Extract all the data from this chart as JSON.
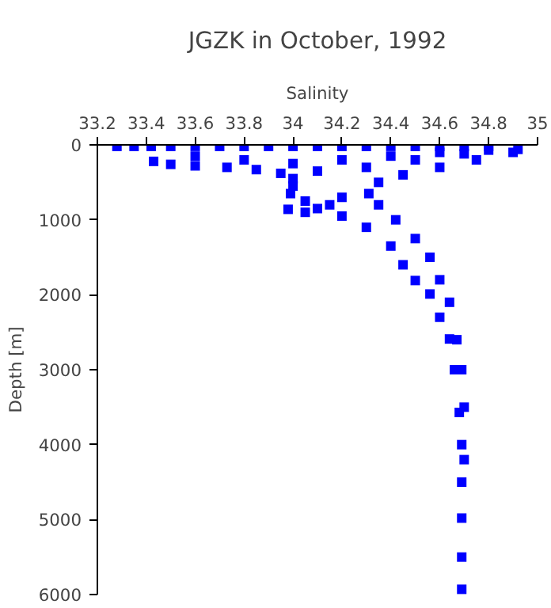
{
  "chart_data": {
    "type": "scatter",
    "title": "JGZK in October, 1992",
    "xlabel": "Salinity",
    "ylabel": "Depth [m]",
    "xlim": [
      33.2,
      35
    ],
    "xticks": [
      33.2,
      33.4,
      33.6,
      33.8,
      34,
      34.2,
      34.4,
      34.6,
      34.8,
      35
    ],
    "ylim": [
      6000,
      0
    ],
    "yticks": [
      0,
      1000,
      2000,
      3000,
      4000,
      5000,
      6000
    ],
    "grid": false,
    "marker": "square",
    "series": [
      {
        "color": "#0000ff",
        "x": [
          33.28,
          33.35,
          33.42,
          33.5,
          33.6,
          33.7,
          33.8,
          33.9,
          34.0,
          34.1,
          34.2,
          34.3,
          34.4,
          34.5,
          34.6,
          34.7,
          34.8,
          34.92,
          33.43,
          33.5,
          33.6,
          33.73,
          33.85,
          33.95,
          34.0,
          34.0,
          33.99,
          33.6,
          33.8,
          34.0,
          34.2,
          34.4,
          34.6,
          34.8,
          34.1,
          34.3,
          34.5,
          34.7,
          33.98,
          34.05,
          34.1,
          34.15,
          34.05,
          34.2,
          34.9,
          34.75,
          34.6,
          34.45,
          34.35,
          34.31,
          34.35,
          34.42,
          34.5,
          34.56,
          34.6,
          34.64,
          34.2,
          34.3,
          34.4,
          34.45,
          34.5,
          34.56,
          34.6,
          34.64,
          34.66,
          34.68,
          34.69,
          34.69,
          34.69,
          34.69,
          34.69,
          34.67,
          34.69,
          34.7,
          34.7
        ],
        "values": [
          20,
          20,
          20,
          20,
          20,
          20,
          20,
          20,
          20,
          20,
          20,
          20,
          20,
          20,
          20,
          20,
          20,
          60,
          220,
          260,
          280,
          300,
          330,
          380,
          450,
          550,
          650,
          150,
          200,
          250,
          200,
          150,
          100,
          70,
          350,
          300,
          200,
          120,
          860,
          900,
          850,
          800,
          750,
          700,
          100,
          200,
          300,
          400,
          500,
          650,
          800,
          1000,
          1250,
          1500,
          1800,
          2100,
          950,
          1100,
          1350,
          1600,
          1810,
          1990,
          2300,
          2590,
          3000,
          3570,
          4000,
          4500,
          4980,
          5500,
          5930,
          2600,
          3000,
          3500,
          4200
        ]
      }
    ]
  }
}
